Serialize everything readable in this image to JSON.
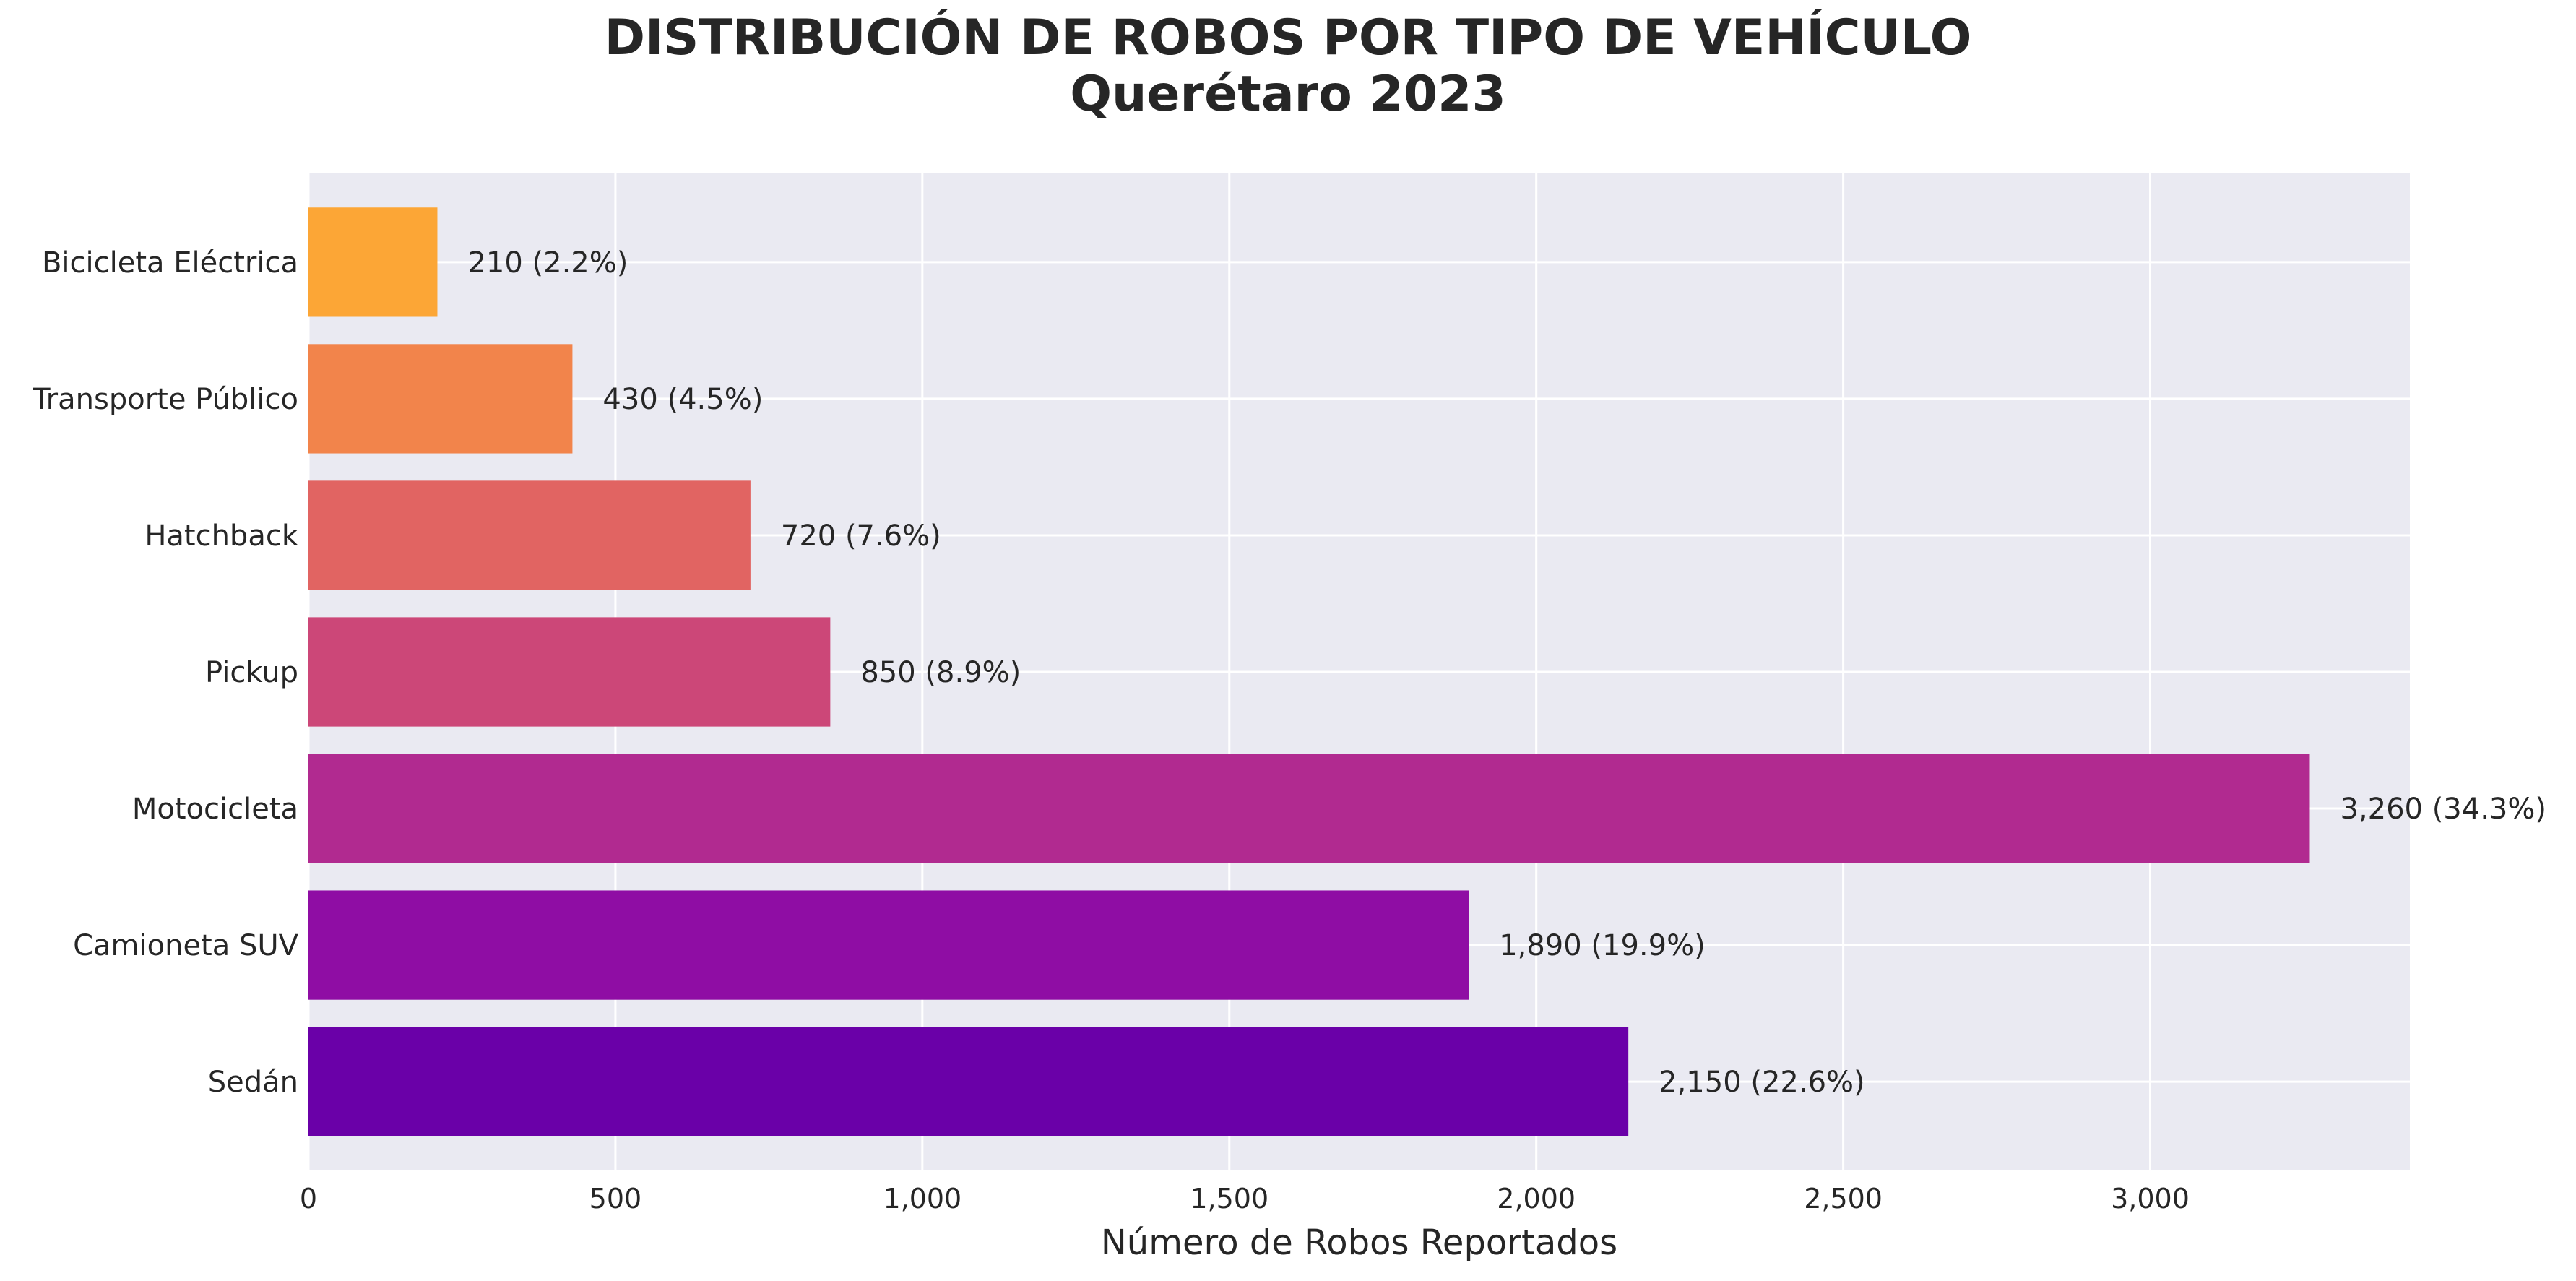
{
  "chart_data": {
    "type": "bar",
    "orientation": "horizontal",
    "title_lines": [
      "DISTRIBUCIÓN DE ROBOS POR TIPO DE VEHÍCULO",
      "Querétaro 2023"
    ],
    "xlabel": "Número de Robos Reportados",
    "ylabel": "",
    "categories": [
      "Sedán",
      "Camioneta SUV",
      "Motocicleta",
      "Pickup",
      "Hatchback",
      "Transporte Público",
      "Bicicleta Eléctrica"
    ],
    "values": [
      2150,
      1890,
      3260,
      850,
      720,
      430,
      210
    ],
    "data_labels": [
      "2,150 (22.6%)",
      "1,890 (19.9%)",
      "3,260 (34.3%)",
      "850 (8.9%)",
      "720 (7.6%)",
      "430 (4.5%)",
      "210 (2.2%)"
    ],
    "colors": [
      "#6a00a8",
      "#8f0da4",
      "#b12a90",
      "#cc4778",
      "#e16462",
      "#f2844b",
      "#fca636"
    ],
    "xlim": [
      0,
      3423
    ],
    "xticks": [
      0,
      500,
      1000,
      1500,
      2000,
      2500,
      3000
    ],
    "xtick_labels": [
      "0",
      "500",
      "1,000",
      "1,500",
      "2,000",
      "2,500",
      "3,000"
    ],
    "grid": true,
    "background": "#eaeaf2",
    "grid_color": "#ffffff",
    "legend": "none"
  }
}
